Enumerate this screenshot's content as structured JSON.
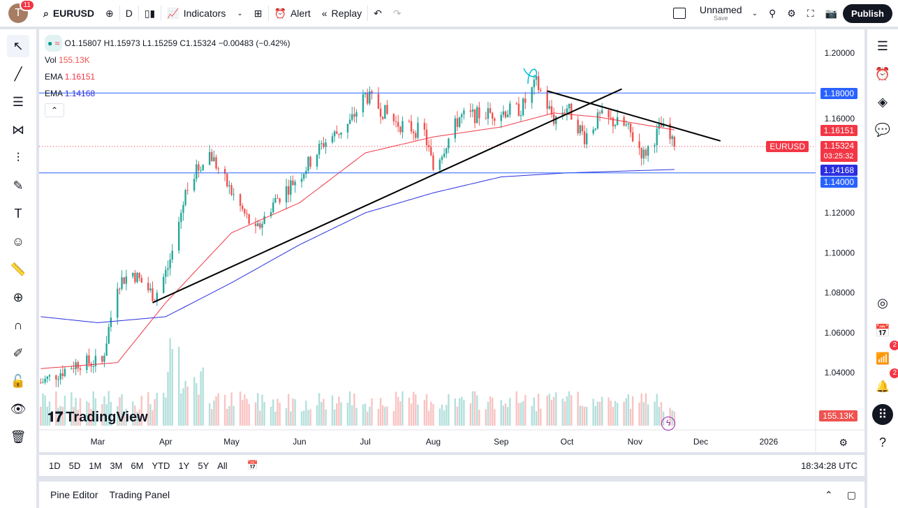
{
  "header": {
    "avatar_letter": "T",
    "notifications": "11",
    "symbol": "EURUSD",
    "interval": "D",
    "indicators": "Indicators",
    "alert": "Alert",
    "replay": "Replay",
    "layout_name": "Unnamed",
    "layout_save": "Save",
    "publish": "Publish"
  },
  "legend": {
    "ohlc": "O1.15807 H1.15973 L1.15259 C1.15324 −0.00483 (−0.42%)",
    "vol_label": "Vol",
    "vol_value": "155.13K",
    "ema1_label": "EMA",
    "ema1_value": "1.16151",
    "ema2_label": "EMA",
    "ema2_value": "1.14168"
  },
  "price_labels": {
    "p1180": "1.18000",
    "ema1": "1.16151",
    "symbol_tag": "EURUSD",
    "last": "1.15324",
    "countdown": "03:25:32",
    "ema2": "1.14168",
    "p1140": "1.14000",
    "volume": "155.13K"
  },
  "logo": "TradingView",
  "colors": {
    "up": "#26a69a",
    "down": "#ef5350",
    "ema_fast": "#f23645",
    "ema_slow": "#2a2ee0",
    "hline": "#2962ff"
  },
  "chart_data": {
    "type": "candlestick",
    "symbol": "EURUSD",
    "interval": "D",
    "y_ticks": [
      "1.20000",
      "1.18000",
      "1.16000",
      "1.14000",
      "1.12000",
      "1.10000",
      "1.08000",
      "1.06000",
      "1.04000"
    ],
    "ylim": [
      1.025,
      1.205
    ],
    "x_ticks": [
      [
        "Mar",
        "2025-03-01"
      ],
      [
        "Apr",
        "2025-04-01"
      ],
      [
        "May",
        "2025-05-01"
      ],
      [
        "Jun",
        "2025-06-01"
      ],
      [
        "Jul",
        "2025-07-01"
      ],
      [
        "Aug",
        "2025-08-01"
      ],
      [
        "Sep",
        "2025-09-01"
      ],
      [
        "Oct",
        "2025-10-01"
      ],
      [
        "Nov",
        "2025-11-01"
      ],
      [
        "Dec",
        "2025-12-01"
      ],
      [
        "2026",
        "2026-01-01"
      ]
    ],
    "xlim": [
      "2025-02-03",
      "2026-01-31"
    ],
    "close_path": [
      [
        "2025-02-03",
        1.035
      ],
      [
        "2025-02-20",
        1.045
      ],
      [
        "2025-03-03",
        1.045
      ],
      [
        "2025-03-10",
        1.085
      ],
      [
        "2025-03-17",
        1.09
      ],
      [
        "2025-03-27",
        1.078
      ],
      [
        "2025-04-03",
        1.095
      ],
      [
        "2025-04-11",
        1.135
      ],
      [
        "2025-04-21",
        1.15
      ],
      [
        "2025-04-30",
        1.132
      ],
      [
        "2025-05-12",
        1.11
      ],
      [
        "2025-05-20",
        1.125
      ],
      [
        "2025-06-02",
        1.14
      ],
      [
        "2025-06-12",
        1.155
      ],
      [
        "2025-06-24",
        1.165
      ],
      [
        "2025-07-01",
        1.179
      ],
      [
        "2025-07-15",
        1.165
      ],
      [
        "2025-07-28",
        1.16
      ],
      [
        "2025-08-01",
        1.142
      ],
      [
        "2025-08-13",
        1.168
      ],
      [
        "2025-08-29",
        1.17
      ],
      [
        "2025-09-10",
        1.172
      ],
      [
        "2025-09-17",
        1.185
      ],
      [
        "2025-09-25",
        1.167
      ],
      [
        "2025-10-01",
        1.173
      ],
      [
        "2025-10-09",
        1.158
      ],
      [
        "2025-10-16",
        1.168
      ],
      [
        "2025-10-28",
        1.163
      ],
      [
        "2025-11-05",
        1.149
      ],
      [
        "2025-11-13",
        1.163
      ],
      [
        "2025-11-19",
        1.153
      ]
    ],
    "ema_fast_path": [
      [
        "2025-02-03",
        1.042
      ],
      [
        "2025-03-10",
        1.045
      ],
      [
        "2025-04-01",
        1.075
      ],
      [
        "2025-05-01",
        1.11
      ],
      [
        "2025-06-01",
        1.125
      ],
      [
        "2025-07-01",
        1.15
      ],
      [
        "2025-08-01",
        1.158
      ],
      [
        "2025-09-01",
        1.163
      ],
      [
        "2025-09-25",
        1.17
      ],
      [
        "2025-10-15",
        1.168
      ],
      [
        "2025-11-19",
        1.1615
      ]
    ],
    "ema_slow_path": [
      [
        "2025-02-03",
        1.068
      ],
      [
        "2025-03-01",
        1.065
      ],
      [
        "2025-04-01",
        1.068
      ],
      [
        "2025-05-01",
        1.085
      ],
      [
        "2025-06-01",
        1.104
      ],
      [
        "2025-07-01",
        1.12
      ],
      [
        "2025-08-01",
        1.13
      ],
      [
        "2025-09-01",
        1.138
      ],
      [
        "2025-10-01",
        1.14
      ],
      [
        "2025-11-19",
        1.1417
      ]
    ],
    "horizontal_lines": [
      1.18,
      1.14
    ],
    "trend_lines": [
      [
        [
          "2025-03-26",
          1.075
        ],
        [
          "2025-10-26",
          1.182
        ]
      ],
      [
        [
          "2025-09-22",
          1.181
        ],
        [
          "2025-12-10",
          1.156
        ]
      ]
    ],
    "last_volume": "155.13K"
  },
  "timezone_clock": "18:34:28 UTC",
  "ranges": [
    "1D",
    "5D",
    "1M",
    "3M",
    "6M",
    "YTD",
    "1Y",
    "5Y",
    "All"
  ],
  "bottom_tabs": [
    "Pine Editor",
    "Trading Panel"
  ],
  "right_badges": [
    "2",
    "2"
  ]
}
